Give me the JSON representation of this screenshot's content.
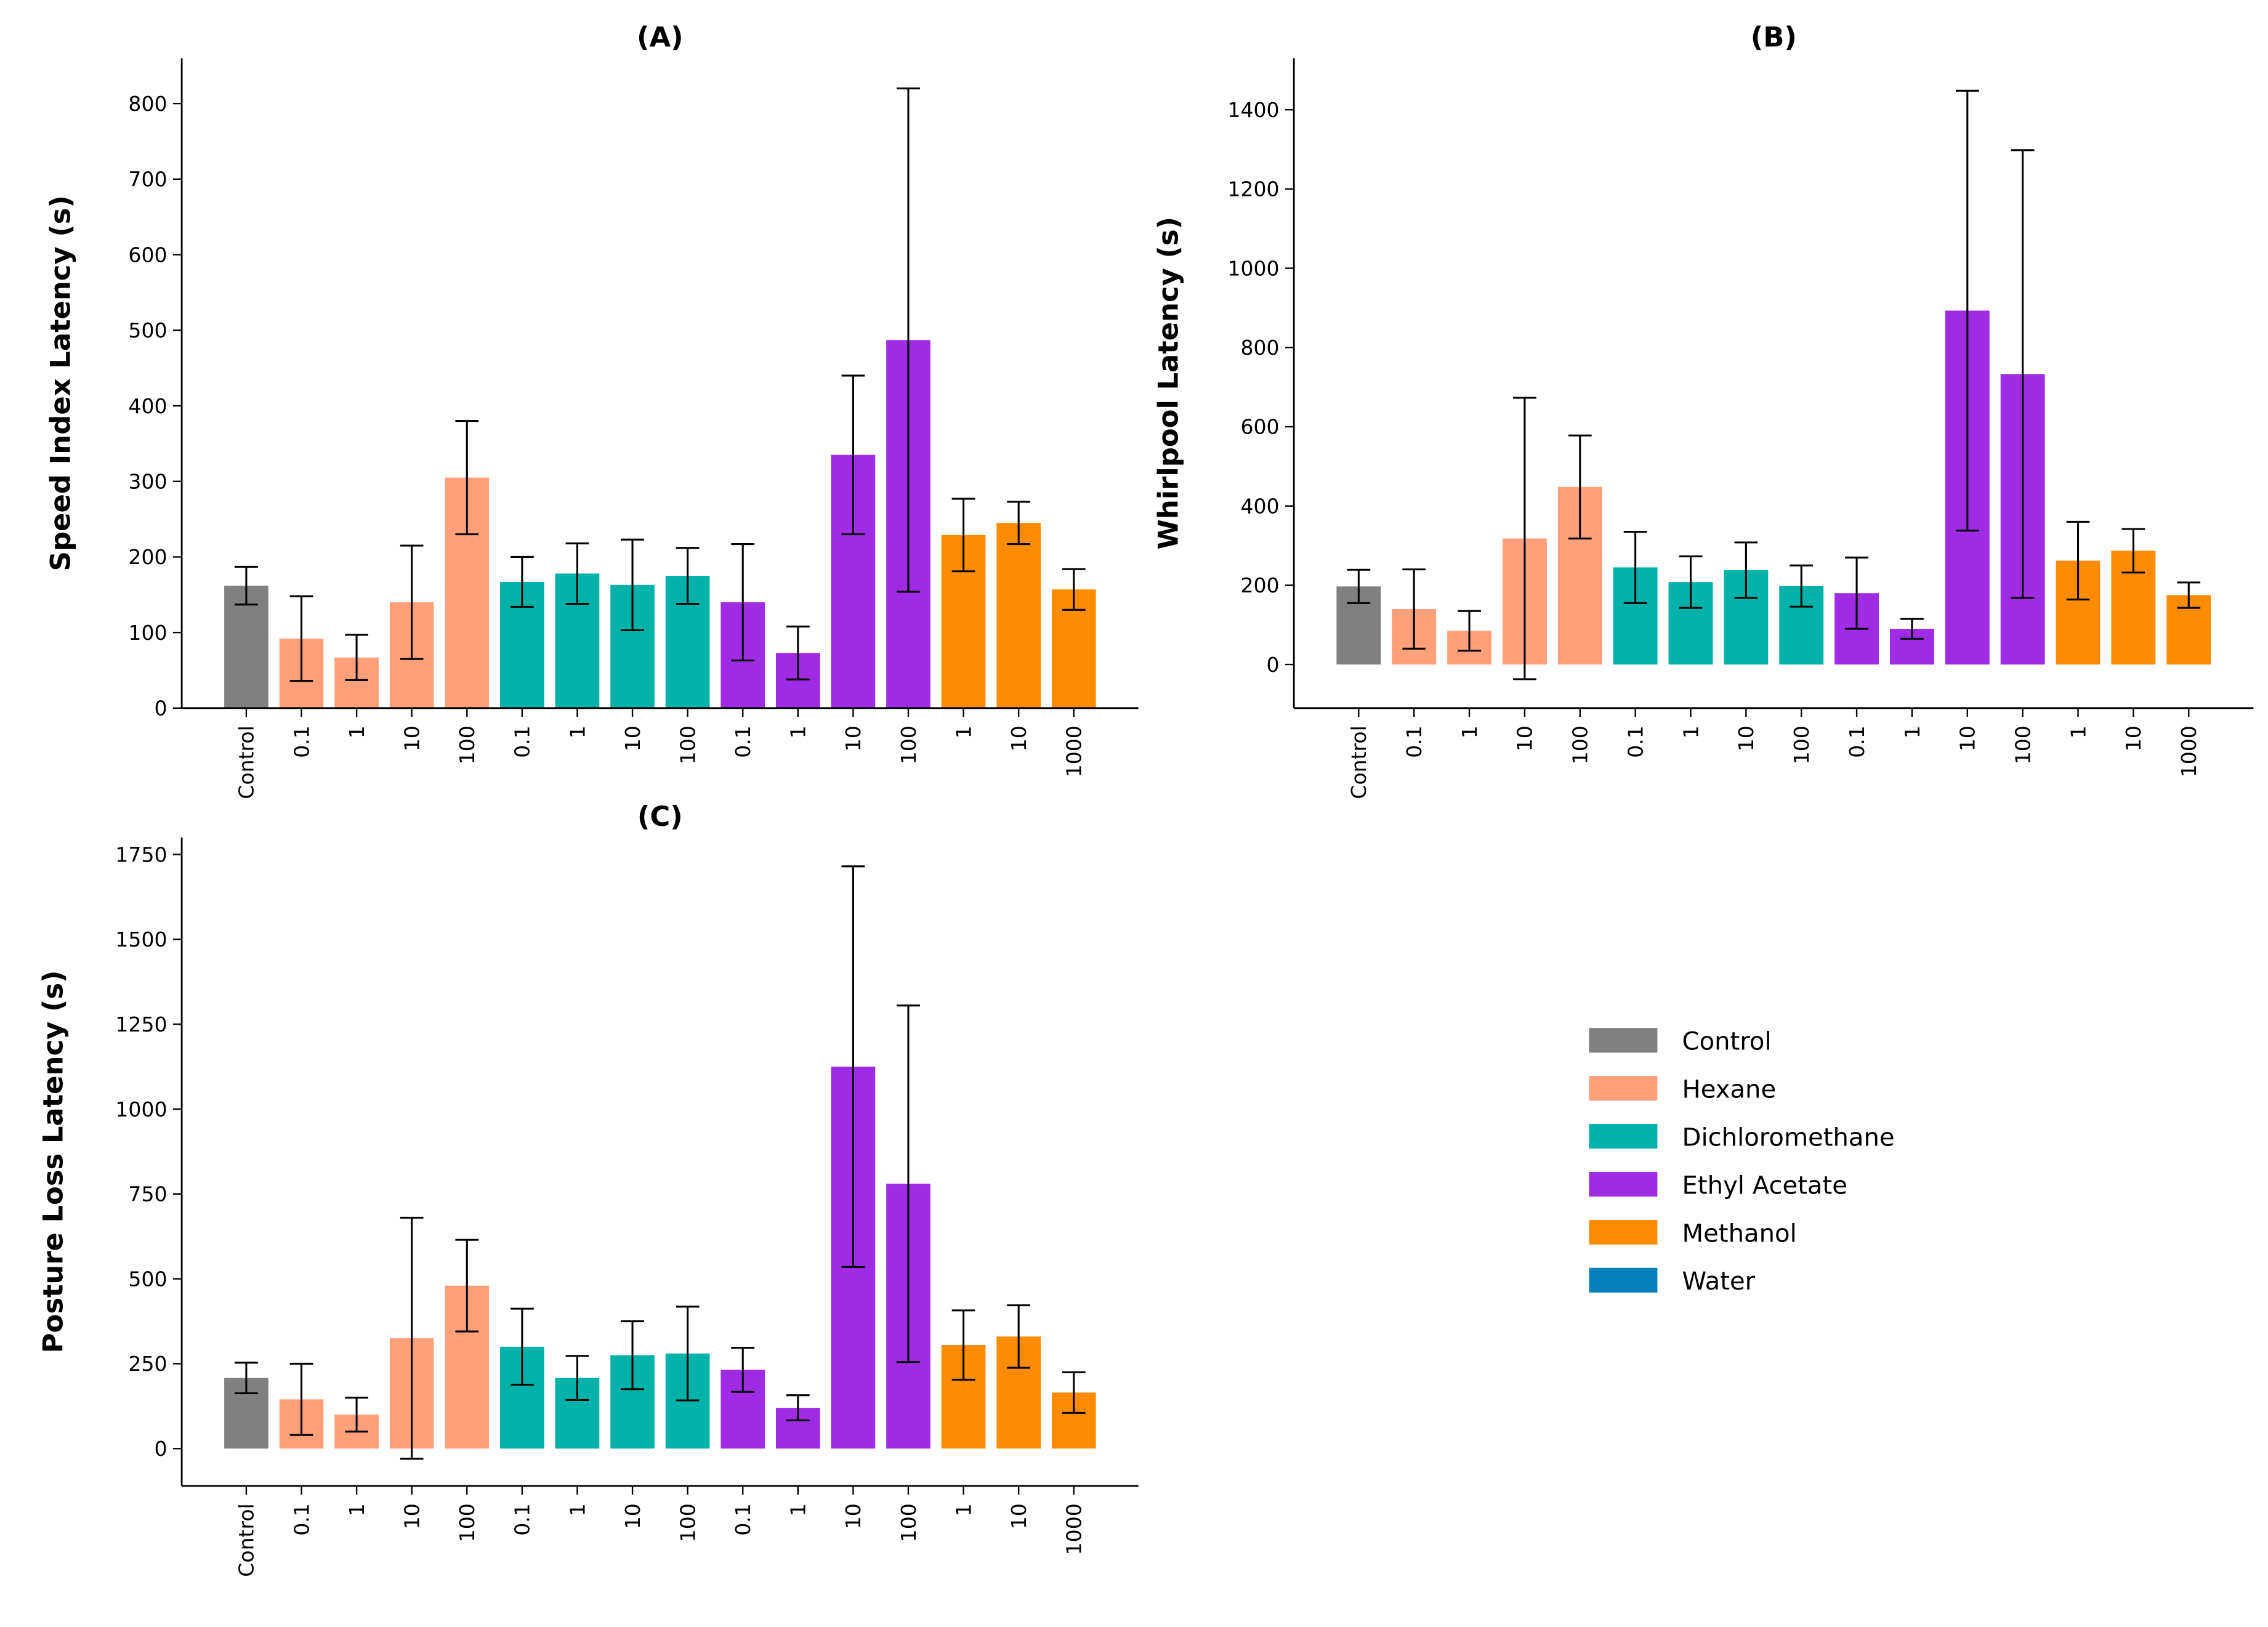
{
  "chart_data": [
    {
      "type": "bar",
      "title": "(A)",
      "y_label": "Speed Index Latency (s)",
      "categories": [
        "Control",
        "0.1",
        "1",
        "10",
        "100",
        "0.1",
        "1",
        "10",
        "100",
        "0.1",
        "1",
        "10",
        "100",
        "1",
        "10",
        "1000"
      ],
      "values": [
        162,
        92,
        67,
        140,
        305,
        167,
        178,
        163,
        175,
        140,
        73,
        335,
        487,
        229,
        245,
        157
      ],
      "errors": [
        25,
        56,
        30,
        75,
        75,
        33,
        40,
        60,
        37,
        77,
        35,
        105,
        333,
        48,
        28,
        27
      ],
      "colors": [
        "#808080",
        "#ffa07a",
        "#ffa07a",
        "#ffa07a",
        "#ffa07a",
        "#00b2aa",
        "#00b2aa",
        "#00b2aa",
        "#00b2aa",
        "#a02be4",
        "#a02be4",
        "#a02be4",
        "#a02be4",
        "#ff8c00",
        "#ff8c00",
        "#ff8c00"
      ],
      "ylim": [
        0,
        860
      ],
      "yticks": [
        0,
        100,
        200,
        300,
        400,
        500,
        600,
        700,
        800
      ]
    },
    {
      "type": "bar",
      "title": "(B)",
      "y_label": "Whirlpool Latency (s)",
      "categories": [
        "Control",
        "0.1",
        "1",
        "10",
        "100",
        "0.1",
        "1",
        "10",
        "100",
        "0.1",
        "1",
        "10",
        "100",
        "1",
        "10",
        "1000"
      ],
      "values": [
        197,
        140,
        85,
        318,
        448,
        245,
        208,
        238,
        198,
        180,
        90,
        893,
        733,
        262,
        287,
        175
      ],
      "errors": [
        42,
        100,
        50,
        355,
        130,
        90,
        65,
        70,
        52,
        90,
        25,
        555,
        565,
        98,
        55,
        32
      ],
      "colors": [
        "#808080",
        "#ffa07a",
        "#ffa07a",
        "#ffa07a",
        "#ffa07a",
        "#00b2aa",
        "#00b2aa",
        "#00b2aa",
        "#00b2aa",
        "#a02be4",
        "#a02be4",
        "#a02be4",
        "#a02be4",
        "#ff8c00",
        "#ff8c00",
        "#ff8c00"
      ],
      "ylim": [
        -110,
        1530
      ],
      "yticks": [
        0,
        200,
        400,
        600,
        800,
        1000,
        1200,
        1400
      ]
    },
    {
      "type": "bar",
      "title": "(C)",
      "y_label": "Posture Loss Latency (s)",
      "categories": [
        "Control",
        "0.1",
        "1",
        "10",
        "100",
        "0.1",
        "1",
        "10",
        "100",
        "0.1",
        "1",
        "10",
        "100",
        "1",
        "10",
        "1000"
      ],
      "values": [
        208,
        145,
        100,
        325,
        480,
        300,
        208,
        275,
        280,
        232,
        120,
        1125,
        780,
        305,
        330,
        165
      ],
      "errors": [
        45,
        105,
        50,
        355,
        135,
        112,
        65,
        100,
        138,
        65,
        37,
        590,
        525,
        102,
        92,
        60
      ],
      "colors": [
        "#808080",
        "#ffa07a",
        "#ffa07a",
        "#ffa07a",
        "#ffa07a",
        "#00b2aa",
        "#00b2aa",
        "#00b2aa",
        "#00b2aa",
        "#a02be4",
        "#a02be4",
        "#a02be4",
        "#a02be4",
        "#ff8c00",
        "#ff8c00",
        "#ff8c00"
      ],
      "ylim": [
        -110,
        1800
      ],
      "yticks": [
        0,
        250,
        500,
        750,
        1000,
        1250,
        1500,
        1750
      ]
    }
  ],
  "legend": [
    {
      "name": "Control",
      "color": "#808080"
    },
    {
      "name": "Hexane",
      "color": "#ffa07a"
    },
    {
      "name": "Dichloromethane",
      "color": "#00b2aa"
    },
    {
      "name": "Ethyl Acetate",
      "color": "#a02be4"
    },
    {
      "name": "Methanol",
      "color": "#ff8c00"
    },
    {
      "name": "Water",
      "color": "#0580bd"
    }
  ]
}
